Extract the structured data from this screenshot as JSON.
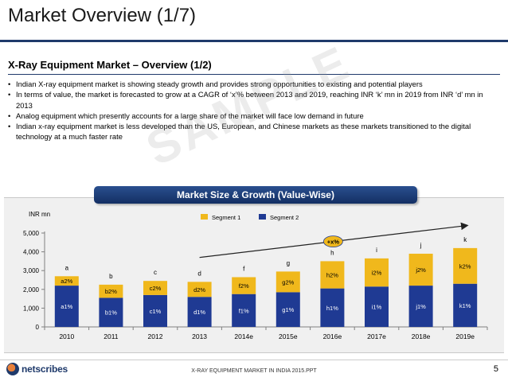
{
  "slide": {
    "title": "Market Overview (1/7)",
    "section_heading": "X-Ray Equipment Market – Overview (1/2)",
    "watermark": "SAMPLE",
    "bullets": [
      "Indian X-ray equipment market is showing steady growth and provides strong opportunities to existing and potential players",
      "In terms of value, the market is forecasted to grow at a CAGR of ‘x’% between 2013 and 2019, reaching INR ‘k’ mn in 2019 from INR ‘d’ mn in 2013",
      "Analog equipment which presently accounts for a large share of the market will face low demand in future",
      "Indian x-ray equipment market is less developed than the US, European, and Chinese markets as these markets transitioned to the digital technology at a much faster rate"
    ]
  },
  "chart_banner": "Market Size & Growth (Value-Wise)",
  "chart_data": {
    "type": "bar",
    "stacked": true,
    "title": "Market Size & Growth (Value-Wise)",
    "ylabel": "INR mn",
    "xlabel": "",
    "ylim": [
      0,
      5000
    ],
    "yticks": [
      0,
      1000,
      2000,
      3000,
      4000,
      5000
    ],
    "ytick_labels": [
      "0",
      "1,000",
      "2,000",
      "3,000",
      "4,000",
      "5,000"
    ],
    "categories": [
      "2010",
      "2011",
      "2012",
      "2013",
      "2014e",
      "2015e",
      "2016e",
      "2017e",
      "2018e",
      "2019e"
    ],
    "series": [
      {
        "name": "Segment 2",
        "color": "#1f3a93",
        "values": [
          2200,
          1550,
          1700,
          1600,
          1750,
          1850,
          2050,
          2150,
          2200,
          2300
        ],
        "labels": [
          "a1%",
          "b1%",
          "c1%",
          "d1%",
          "f1%",
          "g1%",
          "h1%",
          "i1%",
          "j1%",
          "k1%"
        ]
      },
      {
        "name": "Segment 1",
        "color": "#f0b81c",
        "values": [
          500,
          700,
          750,
          800,
          900,
          1100,
          1450,
          1500,
          1700,
          1900
        ],
        "labels": [
          "a2%",
          "b2%",
          "c2%",
          "d2%",
          "f2%",
          "g2%",
          "h2%",
          "i2%",
          "j2%",
          "k2%"
        ]
      }
    ],
    "total_labels": [
      "a",
      "b",
      "c",
      "d",
      "f",
      "g",
      "h",
      "i",
      "j",
      "k"
    ],
    "legend": [
      "Segment 1",
      "Segment 2"
    ],
    "legend_position": "top",
    "annotation": {
      "text": "+x%",
      "from_category": "2013",
      "to_category": "2019e",
      "type": "cagr-arrow"
    }
  },
  "footer": {
    "logo_text": "netscribes",
    "document": "X-RAY EQUIPMENT MARKET IN INDIA 2015.PPT",
    "page_number": "5"
  }
}
